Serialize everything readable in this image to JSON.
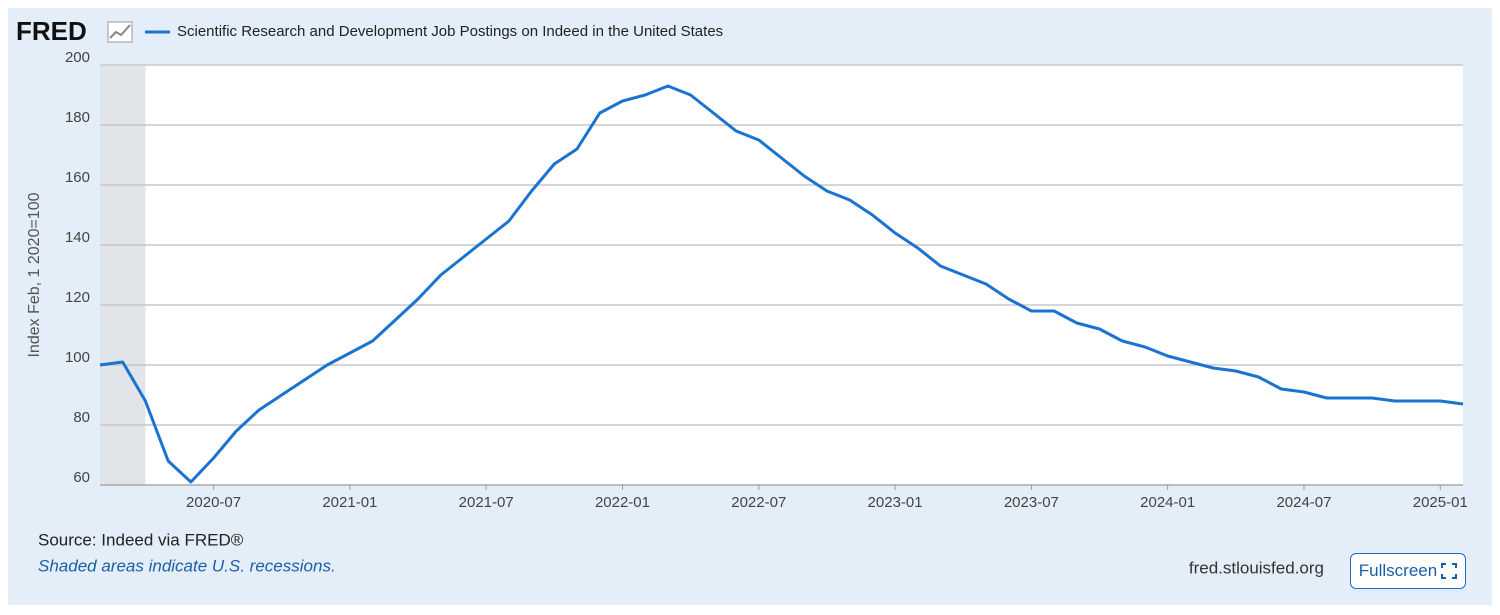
{
  "header": {
    "logo": "FRED"
  },
  "chart_data": {
    "type": "line",
    "title": "Scientific Research and Development Job Postings on Indeed in the United States",
    "y_label": "Index Feb, 1 2020=100",
    "x": [
      "2020-02",
      "2020-03",
      "2020-04",
      "2020-05",
      "2020-06",
      "2020-07",
      "2020-08",
      "2020-09",
      "2020-10",
      "2020-11",
      "2020-12",
      "2021-01",
      "2021-02",
      "2021-03",
      "2021-04",
      "2021-05",
      "2021-06",
      "2021-07",
      "2021-08",
      "2021-09",
      "2021-10",
      "2021-11",
      "2021-12",
      "2022-01",
      "2022-02",
      "2022-03",
      "2022-04",
      "2022-05",
      "2022-06",
      "2022-07",
      "2022-08",
      "2022-09",
      "2022-10",
      "2022-11",
      "2022-12",
      "2023-01",
      "2023-02",
      "2023-03",
      "2023-04",
      "2023-05",
      "2023-06",
      "2023-07",
      "2023-08",
      "2023-09",
      "2023-10",
      "2023-11",
      "2023-12",
      "2024-01",
      "2024-02",
      "2024-03",
      "2024-04",
      "2024-05",
      "2024-06",
      "2024-07",
      "2024-08",
      "2024-09",
      "2024-10",
      "2024-11",
      "2024-12",
      "2025-01",
      "2025-02"
    ],
    "series": [
      {
        "name": "Scientific Research and Development Job Postings on Indeed in the United States",
        "color": "#1a73d0",
        "values": [
          100,
          101,
          88,
          68,
          61,
          69,
          78,
          85,
          90,
          95,
          100,
          104,
          108,
          115,
          122,
          130,
          136,
          142,
          148,
          158,
          167,
          172,
          184,
          188,
          190,
          193,
          190,
          184,
          178,
          175,
          169,
          163,
          158,
          155,
          150,
          144,
          139,
          133,
          130,
          127,
          122,
          118,
          118,
          114,
          112,
          108,
          106,
          103,
          101,
          99,
          98,
          96,
          92,
          91,
          89,
          89,
          89,
          88,
          88,
          88,
          87
        ]
      }
    ],
    "xlim": [
      "2020-02",
      "2025-02"
    ],
    "xticks": [
      "2020-07",
      "2021-01",
      "2021-07",
      "2022-01",
      "2022-07",
      "2023-01",
      "2023-07",
      "2024-01",
      "2024-07",
      "2025-01"
    ],
    "ylim": [
      60,
      200
    ],
    "yticks": [
      60,
      80,
      100,
      120,
      140,
      160,
      180,
      200
    ],
    "grid": true,
    "recessions": [
      {
        "start": "2020-02",
        "end": "2020-04"
      }
    ]
  },
  "footer": {
    "source": "Source: Indeed via FRED®",
    "note": "Shaded areas indicate U.S. recessions.",
    "site": "fred.stlouisfed.org",
    "button": "Fullscreen"
  }
}
